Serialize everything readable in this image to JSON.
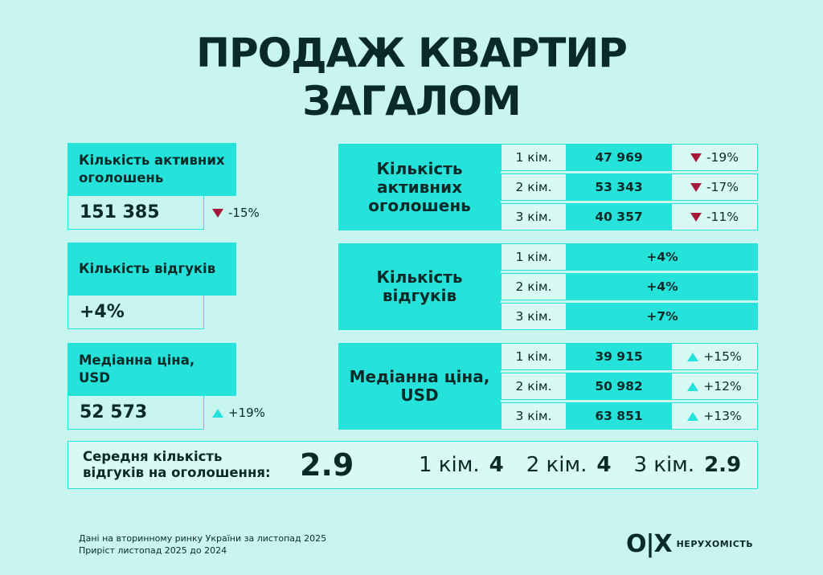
{
  "title": {
    "line1": "ПРОДАЖ КВАРТИР",
    "line2": "ЗАГАЛОМ"
  },
  "left": [
    {
      "label": "Кількість активних оголошень",
      "value": "151 385",
      "change": "-15%",
      "direction": "down"
    },
    {
      "label": "Кількість відгуків",
      "value": "+4%",
      "change": "",
      "direction": ""
    },
    {
      "label": "Медіанна ціна, USD",
      "value": "52 573",
      "change": "+19%",
      "direction": "up"
    }
  ],
  "right": [
    {
      "label": "Кількість активних оголошень",
      "rows": [
        {
          "room": "1 кім.",
          "value": "47 969",
          "change": "-19%",
          "direction": "down"
        },
        {
          "room": "2 кім.",
          "value": "53 343",
          "change": "-17%",
          "direction": "down"
        },
        {
          "room": "3 кім.",
          "value": "40 357",
          "change": "-11%",
          "direction": "down"
        }
      ]
    },
    {
      "label": "Кількість відгуків",
      "rows": [
        {
          "room": "1 кім.",
          "value": "+4%"
        },
        {
          "room": "2 кім.",
          "value": "+4%"
        },
        {
          "room": "3 кім.",
          "value": "+7%"
        }
      ]
    },
    {
      "label": "Медіанна ціна, USD",
      "rows": [
        {
          "room": "1 кім.",
          "value": "39 915",
          "change": "+15%",
          "direction": "up"
        },
        {
          "room": "2 кім.",
          "value": "50 982",
          "change": "+12%",
          "direction": "up"
        },
        {
          "room": "3 кім.",
          "value": "63 851",
          "change": "+13%",
          "direction": "up"
        }
      ]
    }
  ],
  "average": {
    "label": "Середня кількість відгуків на оголошення:",
    "value": "2.9",
    "rooms": [
      {
        "room": "1 кім.",
        "value": "4"
      },
      {
        "room": "2 кім.",
        "value": "4"
      },
      {
        "room": "3 кім.",
        "value": "2.9"
      }
    ]
  },
  "footer": {
    "line1": "Дані на вторинному ринку України за листопад 2025",
    "line2": "Приріст листопад 2025 до 2024"
  },
  "logo": {
    "mark": "O|X",
    "text": "НЕРУХОМІСТЬ"
  },
  "colors": {
    "accent": "#25e2db",
    "background": "#c8f5ee",
    "down": "#a6183a",
    "text": "#0a2a28"
  }
}
